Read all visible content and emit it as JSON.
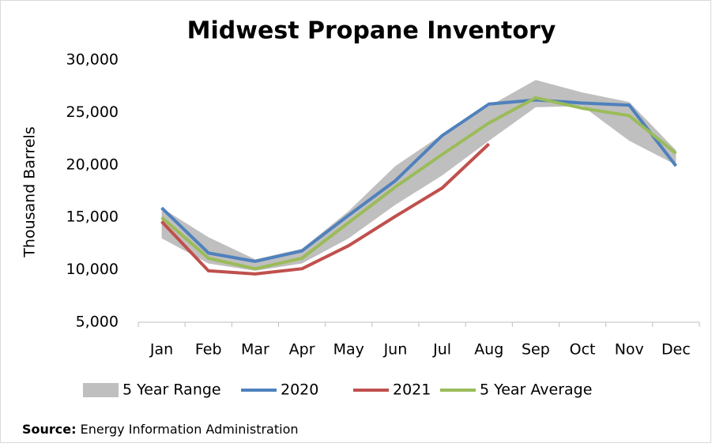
{
  "chart_data": {
    "type": "line",
    "title": "Midwest Propane Inventory",
    "y_label": "Thousand Barrels",
    "categories": [
      "Jan",
      "Feb",
      "Mar",
      "Apr",
      "May",
      "Jun",
      "Jul",
      "Aug",
      "Sep",
      "Oct",
      "Nov",
      "Dec"
    ],
    "ylim": [
      5000,
      30000
    ],
    "yticks": [
      {
        "value": 5000,
        "label": "5,000"
      },
      {
        "value": 10000,
        "label": "10,000"
      },
      {
        "value": 15000,
        "label": "15,000"
      },
      {
        "value": 20000,
        "label": "20,000"
      },
      {
        "value": 25000,
        "label": "25,000"
      },
      {
        "value": 30000,
        "label": "30,000"
      }
    ],
    "range": {
      "name": "5 Year Range",
      "color": "#bfbfbf",
      "low": [
        13000,
        10600,
        9900,
        10600,
        13000,
        16200,
        19000,
        22300,
        25500,
        25600,
        22300,
        20000
      ],
      "high": [
        15900,
        13100,
        11000,
        12000,
        15600,
        19900,
        22900,
        25600,
        28100,
        26900,
        26000,
        21400
      ]
    },
    "series": [
      {
        "name": "2020",
        "color": "#4f81bd",
        "values": [
          15900,
          11600,
          10800,
          11800,
          15200,
          18500,
          22800,
          25800,
          26200,
          25900,
          25700,
          19900
        ]
      },
      {
        "name": "2021",
        "color": "#c0504d",
        "values": [
          14600,
          9900,
          9600,
          10100,
          12300,
          15100,
          17800,
          22000,
          null,
          null,
          null,
          null
        ]
      },
      {
        "name": "5 Year Average",
        "color": "#9bbb59",
        "values": [
          15000,
          11100,
          10100,
          11100,
          14500,
          17900,
          21000,
          24000,
          26400,
          25400,
          24700,
          21100
        ]
      }
    ],
    "source_label": "Source:",
    "source": "Energy Information Administration"
  }
}
